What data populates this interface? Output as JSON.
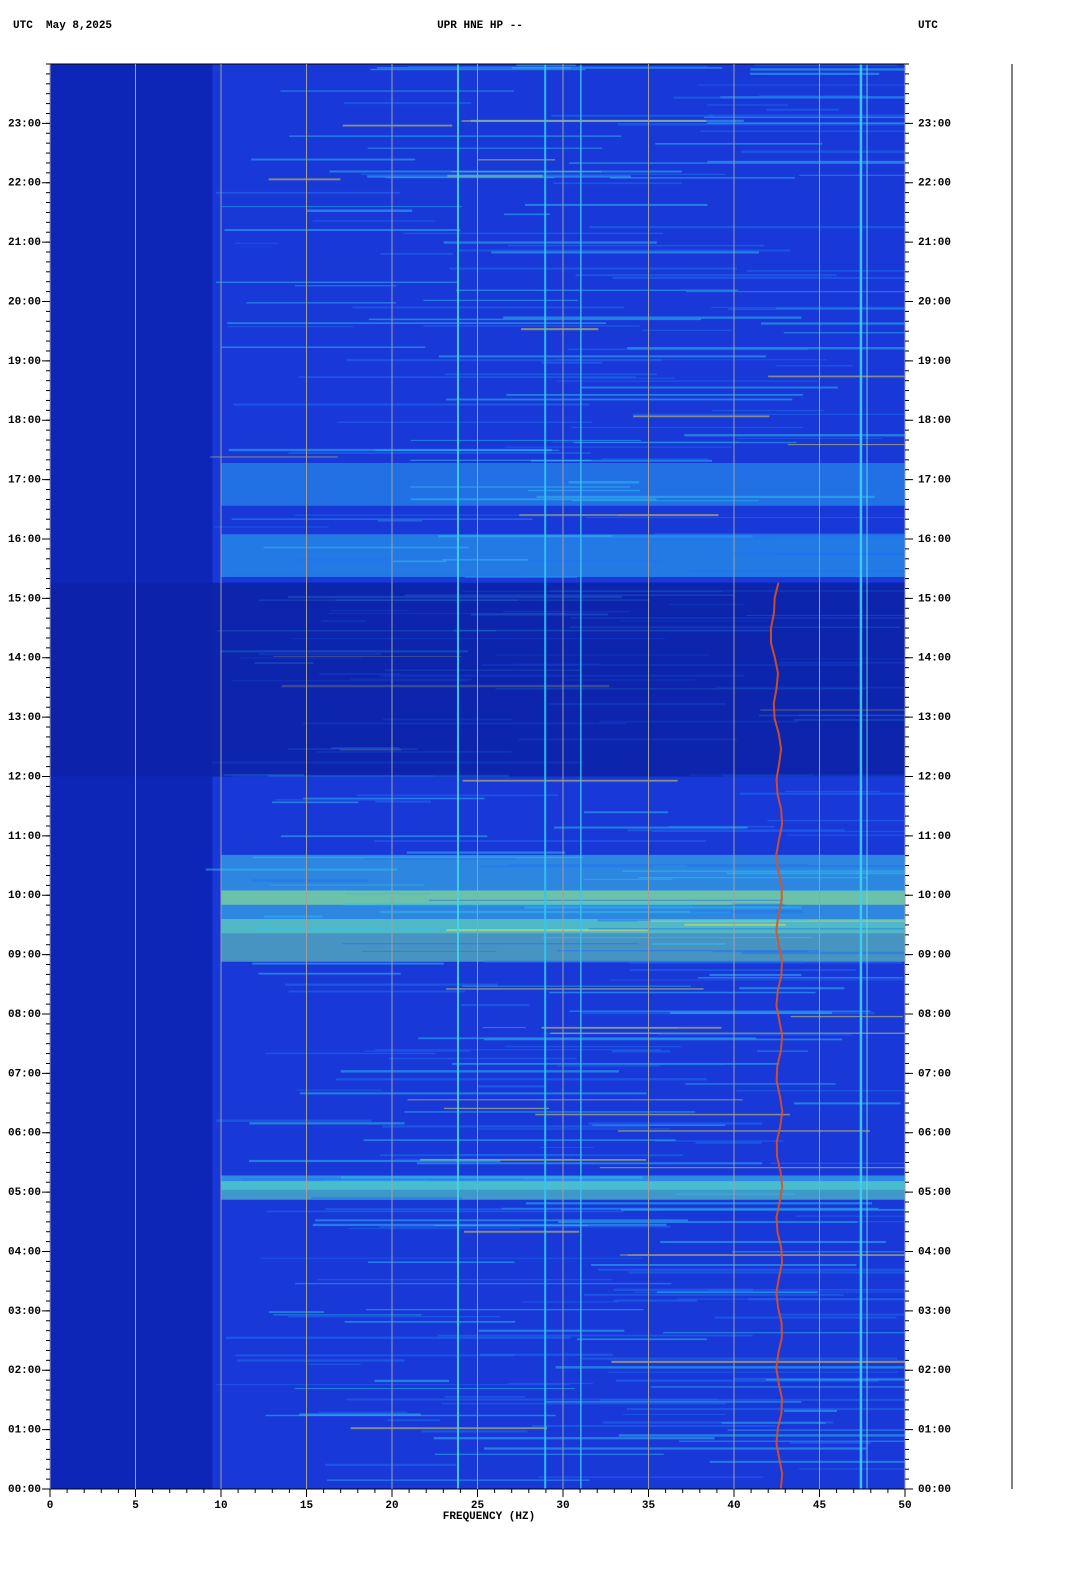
{
  "chart_data": {
    "type": "spectrogram",
    "title": "UPR HNE HP --",
    "left_header": "UTC  May 8,2025",
    "right_header": "UTC",
    "xlabel": "FREQUENCY (HZ)",
    "xlim": [
      0,
      50
    ],
    "xticks": [
      0,
      5,
      10,
      15,
      20,
      25,
      30,
      35,
      40,
      45,
      50
    ],
    "ylim": [
      0,
      24
    ],
    "yticks": [
      {
        "value": 0,
        "label": "00:00"
      },
      {
        "value": 1,
        "label": "01:00"
      },
      {
        "value": 2,
        "label": "02:00"
      },
      {
        "value": 3,
        "label": "03:00"
      },
      {
        "value": 4,
        "label": "04:00"
      },
      {
        "value": 5,
        "label": "05:00"
      },
      {
        "value": 6,
        "label": "06:00"
      },
      {
        "value": 7,
        "label": "07:00"
      },
      {
        "value": 8,
        "label": "08:00"
      },
      {
        "value": 9,
        "label": "09:00"
      },
      {
        "value": 10,
        "label": "10:00"
      },
      {
        "value": 11,
        "label": "11:00"
      },
      {
        "value": 12,
        "label": "12:00"
      },
      {
        "value": 13,
        "label": "13:00"
      },
      {
        "value": 14,
        "label": "14:00"
      },
      {
        "value": 15,
        "label": "15:00"
      },
      {
        "value": 16,
        "label": "16:00"
      },
      {
        "value": 17,
        "label": "17:00"
      },
      {
        "value": 18,
        "label": "18:00"
      },
      {
        "value": 19,
        "label": "19:00"
      },
      {
        "value": 20,
        "label": "20:00"
      },
      {
        "value": 21,
        "label": "21:00"
      },
      {
        "value": 22,
        "label": "22:00"
      },
      {
        "value": 23,
        "label": "23:00"
      }
    ],
    "grid": true
  }
}
